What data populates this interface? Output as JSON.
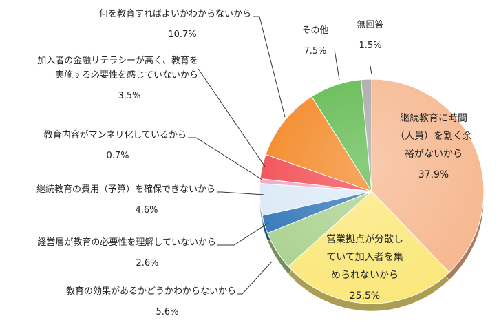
{
  "chart_data": {
    "type": "pie",
    "title": "",
    "slices": [
      {
        "name": "継続教育に時間（人員）を割く余裕がないから",
        "label_lines": [
          "継続教育に時間",
          "（人員）を割く余",
          "裕がないから"
        ],
        "value": 37.9,
        "value_text": "37.9%",
        "color": "#f6b78f"
      },
      {
        "name": "営業拠点が分散していて加入者を集められないから",
        "label_lines": [
          "営業拠点が分散し",
          "ていて加入者を集",
          "められないから"
        ],
        "value": 25.5,
        "value_text": "25.5%",
        "color": "#fbe77a"
      },
      {
        "name": "教育の効果があるかどうかわからないから",
        "label_lines": [
          "教育の効果があるかどうかわからないから"
        ],
        "value": 5.6,
        "value_text": "5.6%",
        "color": "#a9d18e"
      },
      {
        "name": "経営層が教育の必要性を理解していないから",
        "label_lines": [
          "経営層が教育の必要性を理解していないから"
        ],
        "value": 2.6,
        "value_text": "2.6%",
        "color": "#2e75b6"
      },
      {
        "name": "継続教育の費用（予算）を確保できないから",
        "label_lines": [
          "継続教育の費用（予算）を確保できないから"
        ],
        "value": 4.6,
        "value_text": "4.6%",
        "color": "#dae9f7"
      },
      {
        "name": "教育内容がマンネリ化しているから",
        "label_lines": [
          "教育内容がマンネリ化しているから"
        ],
        "value": 0.7,
        "value_text": "0.7%",
        "color": "#f4a3c3"
      },
      {
        "name": "加入者の金融リテラシーが高く、教育を実施する必要性を感じていないから",
        "label_lines": [
          "加入者の金融リテラシーが高く、教育を",
          "実施する必要性を感じていないから"
        ],
        "value": 3.5,
        "value_text": "3.5%",
        "color": "#f2474f"
      },
      {
        "name": "何を教育すればよいかわからないから",
        "label_lines": [
          "何を教育すればよいかわからないから"
        ],
        "value": 10.7,
        "value_text": "10.7%",
        "color": "#f3841e"
      },
      {
        "name": "その他",
        "label_lines": [
          "その他"
        ],
        "value": 7.5,
        "value_text": "7.5%",
        "color": "#5cb84a"
      },
      {
        "name": "無回答",
        "label_lines": [
          "無回答"
        ],
        "value": 1.5,
        "value_text": "1.5%",
        "color": "#a6a6a6"
      }
    ]
  }
}
